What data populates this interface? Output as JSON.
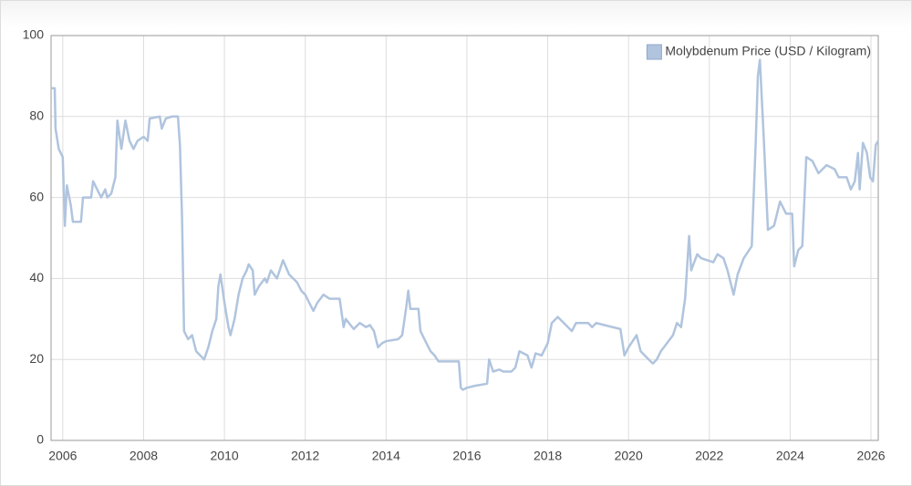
{
  "chart_data": {
    "type": "line",
    "x": [
      2005.71,
      2005.8,
      2005.82,
      2005.9,
      2006.0,
      2006.05,
      2006.1,
      2006.2,
      2006.25,
      2006.45,
      2006.5,
      2006.7,
      2006.75,
      2006.85,
      2006.95,
      2007.05,
      2007.1,
      2007.2,
      2007.3,
      2007.35,
      2007.45,
      2007.55,
      2007.65,
      2007.75,
      2007.85,
      2008.0,
      2008.1,
      2008.15,
      2008.4,
      2008.45,
      2008.55,
      2008.7,
      2008.85,
      2008.9,
      2008.95,
      2009.0,
      2009.1,
      2009.2,
      2009.3,
      2009.4,
      2009.5,
      2009.6,
      2009.7,
      2009.8,
      2009.85,
      2009.9,
      2010.0,
      2010.1,
      2010.15,
      2010.25,
      2010.35,
      2010.45,
      2010.55,
      2010.6,
      2010.7,
      2010.75,
      2010.85,
      2011.0,
      2011.05,
      2011.15,
      2011.3,
      2011.45,
      2011.6,
      2011.8,
      2011.9,
      2012.0,
      2012.1,
      2012.2,
      2012.3,
      2012.45,
      2012.6,
      2012.85,
      2012.95,
      2013.0,
      2013.2,
      2013.35,
      2013.5,
      2013.6,
      2013.7,
      2013.8,
      2013.9,
      2014.0,
      2014.3,
      2014.4,
      2014.5,
      2014.55,
      2014.6,
      2014.8,
      2014.85,
      2015.0,
      2015.1,
      2015.2,
      2015.3,
      2015.8,
      2015.85,
      2015.9,
      2016.0,
      2016.2,
      2016.5,
      2016.55,
      2016.65,
      2016.8,
      2016.9,
      2017.1,
      2017.2,
      2017.3,
      2017.5,
      2017.6,
      2017.7,
      2017.85,
      2018.0,
      2018.1,
      2018.25,
      2018.5,
      2018.6,
      2018.7,
      2019.0,
      2019.1,
      2019.2,
      2019.4,
      2019.6,
      2019.8,
      2019.9,
      2020.0,
      2020.2,
      2020.3,
      2020.5,
      2020.6,
      2020.7,
      2020.8,
      2020.95,
      2021.1,
      2021.2,
      2021.3,
      2021.4,
      2021.5,
      2021.55,
      2021.7,
      2021.8,
      2022.1,
      2022.2,
      2022.35,
      2022.45,
      2022.6,
      2022.7,
      2022.85,
      2022.95,
      2023.05,
      2023.15,
      2023.2,
      2023.25,
      2023.35,
      2023.45,
      2023.6,
      2023.75,
      2023.9,
      2024.05,
      2024.1,
      2024.2,
      2024.3,
      2024.4,
      2024.55,
      2024.7,
      2024.9,
      2025.1,
      2025.2,
      2025.4,
      2025.5,
      2025.6,
      2025.68,
      2025.72,
      2025.8,
      2025.9,
      2025.98,
      2026.05,
      2026.12,
      2026.18
    ],
    "series": [
      {
        "name": "Molybdenum Price (USD / Kilogram)",
        "color": "#b0c4de",
        "values": [
          87,
          87,
          77,
          72,
          70,
          53,
          63,
          58,
          54,
          54,
          60,
          60,
          64,
          62,
          60,
          62,
          60,
          61,
          65,
          79,
          72,
          79,
          74,
          72,
          74,
          75,
          74,
          79.5,
          80,
          77,
          79.5,
          80,
          80,
          73,
          55,
          27,
          25,
          26,
          22,
          21,
          20,
          23,
          27,
          30,
          38,
          41,
          34,
          28,
          26,
          30,
          36,
          40,
          42,
          43.5,
          42,
          36,
          38,
          40,
          39,
          42,
          40,
          44.5,
          41,
          39,
          37,
          36,
          34,
          32,
          34,
          36,
          35,
          35,
          28,
          30,
          27.5,
          29,
          28,
          28.5,
          27,
          23,
          24,
          24.5,
          25,
          26,
          33,
          37,
          32.5,
          32.5,
          27,
          24,
          22,
          21,
          19.5,
          19.5,
          13,
          12.5,
          13,
          13.5,
          14,
          20,
          17,
          17.5,
          17,
          17,
          18,
          22,
          21,
          18,
          21.5,
          21,
          24,
          29,
          30.5,
          28,
          27,
          29,
          29,
          28,
          29,
          28.5,
          28,
          27.5,
          21,
          23,
          26,
          22,
          20,
          19,
          20,
          22,
          24,
          26,
          29,
          28,
          35,
          50.5,
          42,
          46,
          45,
          44,
          46,
          45,
          42,
          36,
          41,
          45,
          46.5,
          48,
          74,
          90,
          94,
          74,
          52,
          53,
          59,
          56,
          56,
          43,
          47,
          48,
          70,
          69,
          66,
          68,
          67,
          65,
          65,
          62,
          64,
          71,
          62,
          73.5,
          71,
          65,
          64,
          73,
          74
        ]
      }
    ],
    "xlim": [
      2005.71,
      2026.18
    ],
    "ylim": [
      0,
      100
    ],
    "xticks": [
      2006,
      2008,
      2010,
      2012,
      2014,
      2016,
      2018,
      2020,
      2022,
      2024,
      2026
    ],
    "yticks": [
      0,
      20,
      40,
      60,
      80,
      100
    ],
    "grid": true,
    "legend": "top-right"
  }
}
